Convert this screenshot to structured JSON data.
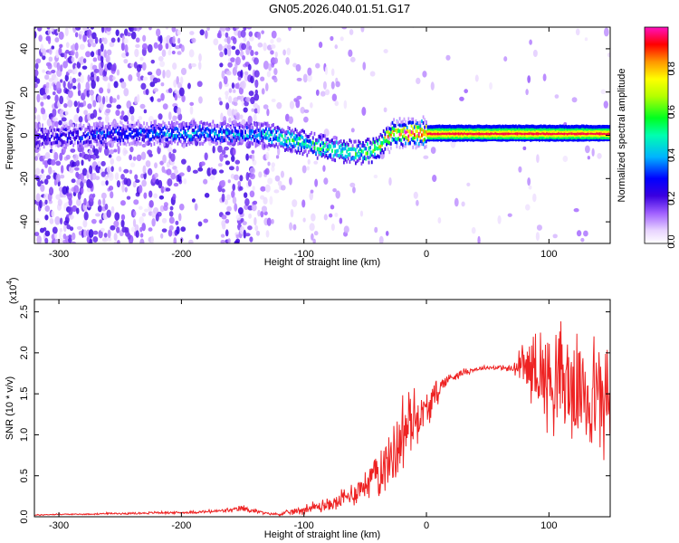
{
  "figure": {
    "title": "GN05.2026.040.01.51.G17"
  },
  "chart_data": [
    {
      "type": "heatmap",
      "title": "GN05.2026.040.01.51.G17",
      "xlabel": "Height of straight line (km)",
      "ylabel": "Frequency (Hz)",
      "xlim": [
        -320,
        150
      ],
      "ylim": [
        -50,
        50
      ],
      "x_ticks": [
        -300,
        -200,
        -100,
        0,
        100
      ],
      "x_tick_labels": [
        "-300",
        "-200",
        "-100",
        "0",
        "100"
      ],
      "y_ticks": [
        -40,
        -20,
        0,
        20,
        40
      ],
      "y_tick_labels": [
        "-40",
        "-20",
        "0",
        "20",
        "40"
      ],
      "colorbar": {
        "label": "Normalized spectral amplitude",
        "range": [
          0,
          1
        ],
        "ticks": [
          0.0,
          0.2,
          0.4,
          0.6,
          0.8
        ],
        "tick_labels": [
          "0.0",
          "0.2",
          "0.4",
          "0.6",
          "0.8"
        ],
        "colormap": [
          "#ffffff",
          "#d9b8ff",
          "#a060ff",
          "#4b0bd6",
          "#0000ff",
          "#00c8ff",
          "#00ff60",
          "#a0ff00",
          "#ffff00",
          "#ff8000",
          "#ff0000",
          "#ff00aa"
        ]
      },
      "ridge": {
        "description_free": true,
        "x": [
          -320,
          -280,
          -240,
          -200,
          -160,
          -130,
          -110,
          -90,
          -70,
          -55,
          -45,
          -38,
          -32,
          -28,
          -20,
          -10,
          0,
          50,
          100,
          150
        ],
        "y": [
          -1,
          0,
          1,
          1,
          1,
          0,
          -2,
          -5,
          -7,
          -8,
          -7,
          -4,
          -1,
          1,
          1,
          1,
          1,
          1,
          1,
          1
        ],
        "amplitude": [
          0.25,
          0.3,
          0.35,
          0.4,
          0.4,
          0.45,
          0.5,
          0.55,
          0.55,
          0.55,
          0.6,
          0.7,
          0.75,
          0.85,
          0.9,
          0.95,
          0.95,
          0.95,
          0.95,
          0.95
        ]
      },
      "grid": false
    },
    {
      "type": "line",
      "xlabel": "Height of straight line (km)",
      "ylabel": "SNR (10 * v/v)",
      "y_multiplier_label": "(x10",
      "y_multiplier_exp": "4",
      "xlim": [
        -320,
        150
      ],
      "ylim": [
        0,
        2.65
      ],
      "x_ticks": [
        -300,
        -200,
        -100,
        0,
        100
      ],
      "x_tick_labels": [
        "-300",
        "-200",
        "-100",
        "0",
        "100"
      ],
      "y_ticks": [
        0,
        0.5,
        1.0,
        1.5,
        2.0,
        2.5
      ],
      "y_tick_labels": [
        "0.0",
        "0.5",
        "1.0",
        "1.5",
        "2.0",
        "2.5"
      ],
      "line_color": "#ee2222",
      "series": [
        {
          "x": [
            -320,
            -300,
            -280,
            -260,
            -240,
            -220,
            -200,
            -180,
            -160,
            -150,
            -140,
            -130,
            -120,
            -110,
            -100,
            -90,
            -80,
            -70,
            -60,
            -50,
            -40,
            -30,
            -25,
            -20,
            -15,
            -10,
            -5,
            0,
            5,
            10,
            15,
            20,
            30,
            40,
            50,
            60,
            70,
            80,
            90,
            100,
            110,
            120,
            130,
            140,
            150
          ],
          "y": [
            0.02,
            0.03,
            0.03,
            0.04,
            0.04,
            0.05,
            0.05,
            0.06,
            0.08,
            0.1,
            0.07,
            0.04,
            0.03,
            0.06,
            0.09,
            0.12,
            0.14,
            0.2,
            0.28,
            0.4,
            0.55,
            0.7,
            0.85,
            1.0,
            1.1,
            1.2,
            1.25,
            1.3,
            1.4,
            1.55,
            1.65,
            1.7,
            1.76,
            1.8,
            1.82,
            1.82,
            1.8,
            1.85,
            1.8,
            1.7,
            1.65,
            1.55,
            1.5,
            1.45,
            1.4
          ],
          "noise": [
            0.005,
            0.005,
            0.005,
            0.008,
            0.008,
            0.01,
            0.01,
            0.015,
            0.02,
            0.03,
            0.02,
            0.01,
            0.01,
            0.03,
            0.04,
            0.05,
            0.06,
            0.08,
            0.1,
            0.15,
            0.2,
            0.3,
            0.35,
            0.35,
            0.3,
            0.25,
            0.2,
            0.15,
            0.12,
            0.1,
            0.07,
            0.05,
            0.03,
            0.02,
            0.02,
            0.02,
            0.05,
            0.2,
            0.35,
            0.45,
            0.5,
            0.5,
            0.5,
            0.5,
            0.5
          ]
        }
      ],
      "grid": false
    }
  ]
}
